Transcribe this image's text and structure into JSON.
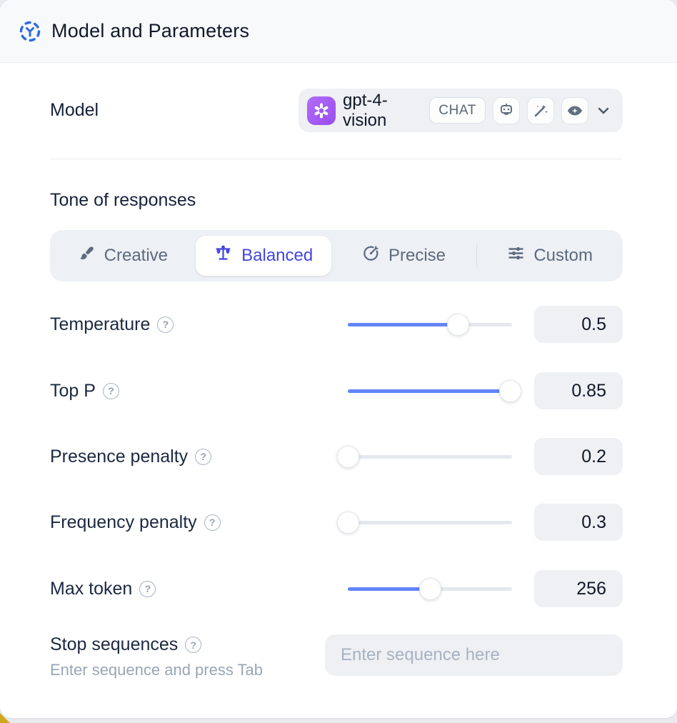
{
  "header": {
    "title": "Model and Parameters",
    "icon": "model-hub-icon"
  },
  "model_row": {
    "label": "Model",
    "selected_model": "gpt-4-vision",
    "provider": "openai-logo",
    "type_badge": "CHAT",
    "capability_icons": [
      "robot-icon",
      "magic-wand-icon",
      "vision-eye-icon"
    ],
    "chevron": "chevron-down-icon"
  },
  "tone": {
    "label": "Tone of responses",
    "selected": "Balanced",
    "options": [
      {
        "label": "Creative",
        "icon": "paintbrush-icon",
        "selected": false
      },
      {
        "label": "Balanced",
        "icon": "balance-scale-icon",
        "selected": true
      },
      {
        "label": "Precise",
        "icon": "target-icon",
        "selected": false
      },
      {
        "label": "Custom",
        "icon": "sliders-icon",
        "selected": false
      }
    ]
  },
  "sliders": [
    {
      "label": "Temperature",
      "value": "0.5",
      "fraction": 0.67
    },
    {
      "label": "Top P",
      "value": "0.85",
      "fraction": 0.99
    },
    {
      "label": "Presence penalty",
      "value": "0.2",
      "fraction": 0
    },
    {
      "label": "Frequency penalty",
      "value": "0.3",
      "fraction": 0
    },
    {
      "label": "Max token",
      "value": "256",
      "fraction": 0.5
    }
  ],
  "help_glyph": "?",
  "stop_sequences": {
    "label": "Stop sequences",
    "hint": "Enter sequence and press Tab",
    "placeholder": "Enter sequence here"
  },
  "colors": {
    "accent_blue": "#6285fa",
    "selected_indigo": "#4246e0",
    "header_icon_blue": "#2f6ae0",
    "provider_purple": "#a159f4",
    "surface_gray": "#eef0f4",
    "text_dark": "#101828",
    "text_muted": "#5c6a7d",
    "corner_yellow": "#d1a61f"
  }
}
